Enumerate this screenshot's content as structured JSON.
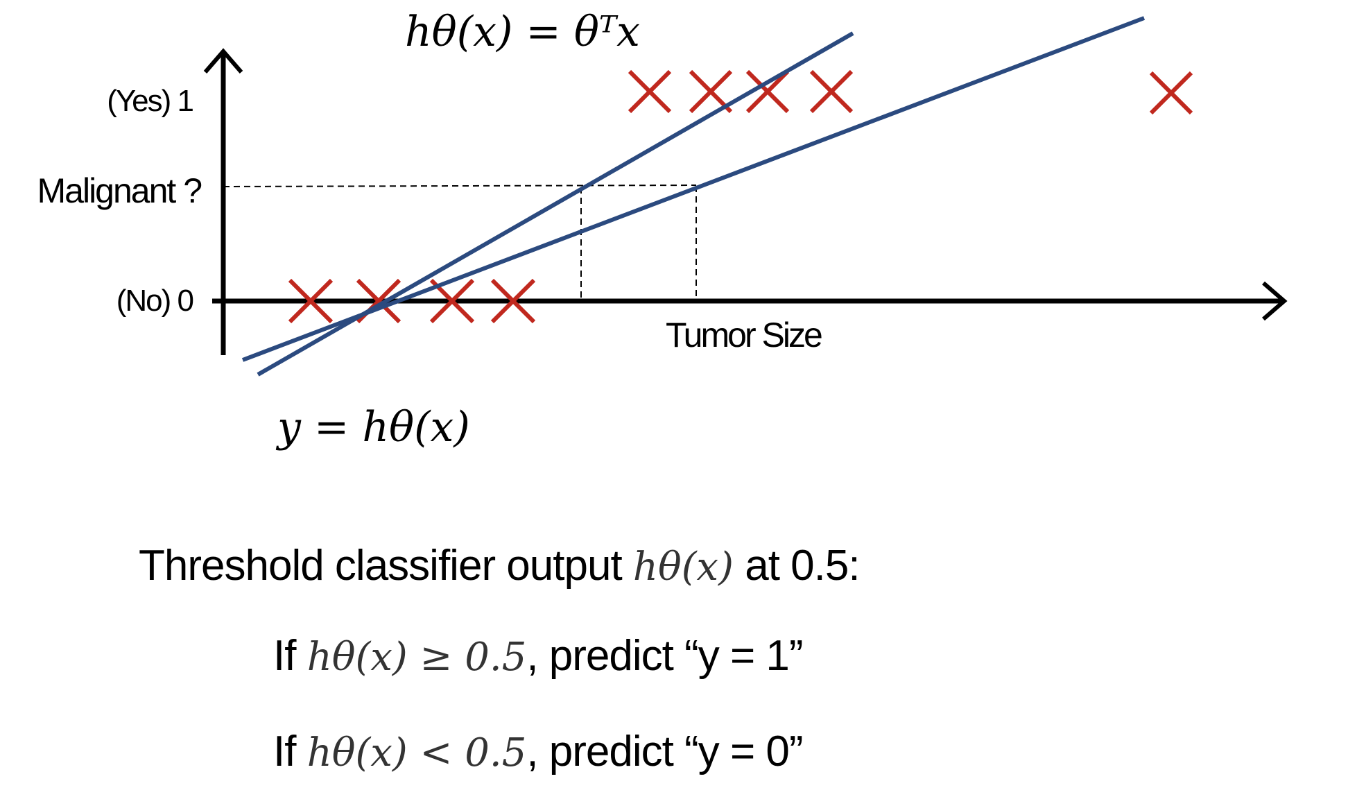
{
  "figure": {
    "top_formula": "hθ(x) = θᵀx",
    "bottom_formula": "y = hθ(x)",
    "y_tick_yes": "(Yes) 1",
    "y_tick_malignant": "Malignant ?",
    "y_tick_no": "(No) 0",
    "x_axis_label": "Tumor Size",
    "colors": {
      "cross": "#c0281e",
      "line": "#2b4a7f",
      "axis": "#000000"
    }
  },
  "rules": {
    "heading_prefix": "Threshold classifier output",
    "heading_math": "hθ(x)",
    "heading_suffix": "at 0.5:",
    "rule1_if": "If",
    "rule1_math": "hθ(x) ≥ 0.5",
    "rule1_predict": ", predict “y = 1”",
    "rule2_if": "If",
    "rule2_math": "hθ(x) < 0.5",
    "rule2_predict": ", predict “y = 0”"
  }
}
